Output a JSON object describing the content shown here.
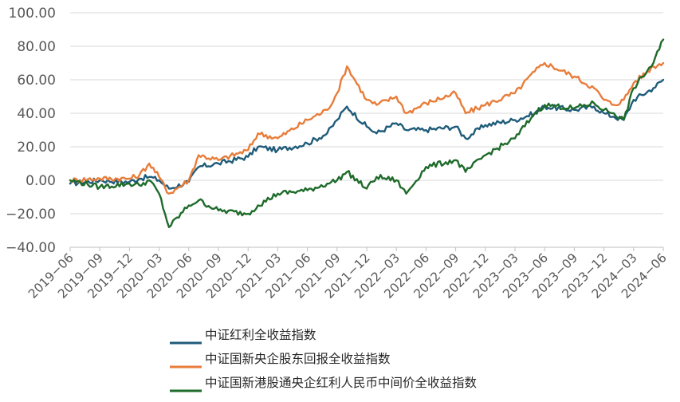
{
  "chart_data": {
    "type": "line",
    "title": "",
    "xlabel": "",
    "ylabel": "",
    "ylim": [
      -40,
      100
    ],
    "yticks": [
      "−40.00",
      "−20.00",
      "0.00",
      "20.00",
      "40.00",
      "60.00",
      "80.00",
      "100.00"
    ],
    "ytick_values": [
      -40,
      -20,
      0,
      20,
      40,
      60,
      80,
      100
    ],
    "xticks": [
      "2019−06",
      "2019−09",
      "2019−12",
      "2020−03",
      "2020−06",
      "2020−09",
      "2020−12",
      "2021−03",
      "2021−06",
      "2021−09",
      "2021−12",
      "2022−03",
      "2022−06",
      "2022−09",
      "2022−12",
      "2023−03",
      "2023−06",
      "2023−09",
      "2023−12",
      "2024−03",
      "2024−06"
    ],
    "grid": "horizontal",
    "legend_position": "bottom",
    "x": [
      "2019-06",
      "2019-09",
      "2019-12",
      "2020-01",
      "2020-02",
      "2020-03",
      "2020-04",
      "2020-06",
      "2020-07",
      "2020-09",
      "2020-12",
      "2021-01",
      "2021-03",
      "2021-06",
      "2021-08",
      "2021-09",
      "2021-10",
      "2021-12",
      "2022-01",
      "2022-03",
      "2022-04",
      "2022-06",
      "2022-09",
      "2022-10",
      "2022-12",
      "2023-03",
      "2023-05",
      "2023-06",
      "2023-09",
      "2023-11",
      "2023-12",
      "2024-01",
      "2024-02",
      "2024-03",
      "2024-05",
      "2024-06"
    ],
    "series": [
      {
        "name": "中证红利全收益指数",
        "color": "#1f5c7a",
        "values": [
          -2,
          0,
          -1,
          1,
          2,
          0,
          -5,
          -1,
          8,
          10,
          14,
          20,
          18,
          22,
          28,
          36,
          44,
          32,
          28,
          34,
          30,
          30,
          32,
          25,
          33,
          36,
          40,
          44,
          42,
          44,
          40,
          38,
          36,
          48,
          55,
          60
        ]
      },
      {
        "name": "中证国新央企股东回报全收益指数",
        "color": "#e87d3a",
        "values": [
          0,
          1,
          1,
          3,
          10,
          2,
          -8,
          0,
          15,
          12,
          18,
          28,
          25,
          36,
          42,
          52,
          68,
          48,
          45,
          50,
          40,
          46,
          52,
          40,
          45,
          52,
          65,
          70,
          62,
          55,
          48,
          45,
          48,
          58,
          68,
          70
        ]
      },
      {
        "name": "中证国新港股通央企红利人民币中间价全收益指数",
        "color": "#1e6b2a",
        "values": [
          0,
          -4,
          -2,
          -3,
          0,
          -8,
          -28,
          -15,
          -12,
          -18,
          -20,
          -15,
          -8,
          -6,
          -2,
          0,
          5,
          -5,
          2,
          0,
          -8,
          8,
          12,
          5,
          15,
          25,
          40,
          45,
          43,
          46,
          42,
          40,
          36,
          55,
          70,
          84
        ]
      }
    ]
  }
}
